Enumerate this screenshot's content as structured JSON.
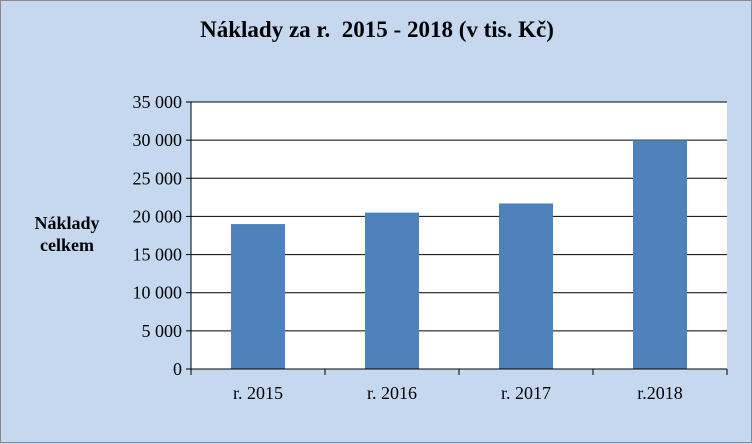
{
  "chart_data": {
    "type": "bar",
    "title": "Náklady za r.  2015 - 2018 (v tis. Kč)",
    "ylabel_lines": [
      "Náklady",
      "celkem"
    ],
    "xlabel": "",
    "categories": [
      "r. 2015",
      "r. 2016",
      "r. 2017",
      "r.2018"
    ],
    "values": [
      19000,
      20500,
      21700,
      30000
    ],
    "ylim": [
      0,
      35000
    ],
    "yticks": [
      {
        "value": 0,
        "label": "0"
      },
      {
        "value": 5000,
        "label": "5 000"
      },
      {
        "value": 10000,
        "label": "10 000"
      },
      {
        "value": 15000,
        "label": "15 000"
      },
      {
        "value": 20000,
        "label": "20 000"
      },
      {
        "value": 25000,
        "label": "25 000"
      },
      {
        "value": 30000,
        "label": "30 000"
      },
      {
        "value": 35000,
        "label": "35 000"
      }
    ],
    "grid": true,
    "legend": "none",
    "colors": {
      "bar": "#4f81bd",
      "background": "#c5d8ef",
      "plot_area": "#ffffff",
      "gridline": "#000000"
    }
  }
}
